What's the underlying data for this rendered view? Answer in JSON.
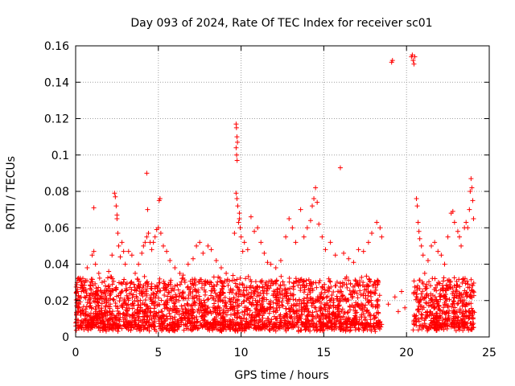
{
  "chart_data": {
    "type": "scatter",
    "title": "Day 093 of 2024, Rate Of TEC Index for receiver sc01",
    "xlabel": "GPS time / hours",
    "ylabel": "ROTI / TECUs",
    "xlim": [
      0,
      25
    ],
    "ylim": [
      0,
      0.16
    ],
    "xticks": [
      0,
      5,
      10,
      15,
      20,
      25
    ],
    "yticks": [
      0,
      0.02,
      0.04,
      0.06,
      0.08,
      0.1,
      0.12,
      0.14,
      0.16
    ],
    "xtick_labels": [
      "0",
      "5",
      "10",
      "15",
      "20",
      "25"
    ],
    "ytick_labels": [
      "0",
      "0.02",
      "0.04",
      "0.06",
      "0.08",
      "0.1",
      "0.12",
      "0.14",
      "0.16"
    ],
    "grid": true,
    "marker": "+",
    "marker_color": "#ff0000",
    "dense_band": {
      "note": "thousands of points, ROTI mostly 0.003 to 0.03 TECU/s",
      "segments": [
        [
          0,
          18.5
        ],
        [
          20.4,
          24.1
        ]
      ],
      "typical_range": [
        0.003,
        0.03
      ]
    },
    "series": [
      {
        "name": "sc01",
        "points": [
          [
            0.05,
            0.012
          ],
          [
            0.2,
            0.018
          ],
          [
            0.35,
            0.025
          ],
          [
            0.5,
            0.03
          ],
          [
            0.7,
            0.038
          ],
          [
            0.9,
            0.028
          ],
          [
            1.0,
            0.045
          ],
          [
            1.1,
            0.047
          ],
          [
            1.2,
            0.04
          ],
          [
            1.4,
            0.035
          ],
          [
            1.6,
            0.03
          ],
          [
            1.8,
            0.028
          ],
          [
            2.0,
            0.036
          ],
          [
            2.1,
            0.033
          ],
          [
            2.2,
            0.045
          ],
          [
            2.35,
            0.079
          ],
          [
            2.4,
            0.077
          ],
          [
            2.45,
            0.072
          ],
          [
            2.5,
            0.065
          ],
          [
            2.55,
            0.057
          ],
          [
            2.6,
            0.05
          ],
          [
            2.7,
            0.044
          ],
          [
            2.8,
            0.052
          ],
          [
            2.9,
            0.047
          ],
          [
            3.0,
            0.04
          ],
          [
            3.2,
            0.047
          ],
          [
            3.4,
            0.045
          ],
          [
            3.6,
            0.035
          ],
          [
            3.8,
            0.04
          ],
          [
            4.0,
            0.046
          ],
          [
            4.1,
            0.05
          ],
          [
            4.2,
            0.052
          ],
          [
            4.3,
            0.055
          ],
          [
            4.4,
            0.057
          ],
          [
            4.5,
            0.052
          ],
          [
            4.6,
            0.048
          ],
          [
            4.7,
            0.052
          ],
          [
            4.8,
            0.055
          ],
          [
            4.9,
            0.059
          ],
          [
            5.0,
            0.06
          ],
          [
            5.05,
            0.075
          ],
          [
            5.15,
            0.057
          ],
          [
            5.3,
            0.05
          ],
          [
            5.5,
            0.047
          ],
          [
            5.7,
            0.042
          ],
          [
            6.0,
            0.038
          ],
          [
            6.3,
            0.035
          ],
          [
            6.5,
            0.034
          ],
          [
            6.8,
            0.04
          ],
          [
            7.1,
            0.043
          ],
          [
            7.3,
            0.05
          ],
          [
            7.5,
            0.052
          ],
          [
            7.7,
            0.046
          ],
          [
            8.0,
            0.05
          ],
          [
            8.2,
            0.048
          ],
          [
            8.5,
            0.042
          ],
          [
            8.8,
            0.038
          ],
          [
            9.1,
            0.035
          ],
          [
            1.1,
            0.071
          ],
          [
            2.5,
            0.067
          ],
          [
            4.3,
            0.09
          ],
          [
            4.35,
            0.07
          ],
          [
            5.1,
            0.076
          ],
          [
            9.7,
            0.117
          ],
          [
            9.72,
            0.115
          ],
          [
            9.75,
            0.11
          ],
          [
            9.78,
            0.107
          ],
          [
            9.7,
            0.104
          ],
          [
            9.73,
            0.1
          ],
          [
            9.76,
            0.097
          ],
          [
            9.7,
            0.079
          ],
          [
            9.75,
            0.076
          ],
          [
            9.8,
            0.072
          ],
          [
            9.85,
            0.063
          ],
          [
            9.9,
            0.068
          ],
          [
            9.95,
            0.06
          ],
          [
            10.0,
            0.055
          ],
          [
            10.1,
            0.047
          ],
          [
            10.2,
            0.052
          ],
          [
            10.4,
            0.048
          ],
          [
            10.6,
            0.066
          ],
          [
            10.8,
            0.058
          ],
          [
            11.0,
            0.06
          ],
          [
            11.2,
            0.052
          ],
          [
            11.4,
            0.046
          ],
          [
            11.6,
            0.041
          ],
          [
            11.8,
            0.04
          ],
          [
            12.1,
            0.038
          ],
          [
            12.4,
            0.042
          ],
          [
            12.7,
            0.055
          ],
          [
            12.9,
            0.065
          ],
          [
            13.1,
            0.06
          ],
          [
            13.3,
            0.052
          ],
          [
            13.6,
            0.07
          ],
          [
            13.8,
            0.055
          ],
          [
            14.0,
            0.06
          ],
          [
            14.2,
            0.064
          ],
          [
            14.3,
            0.072
          ],
          [
            14.4,
            0.076
          ],
          [
            14.5,
            0.082
          ],
          [
            14.6,
            0.074
          ],
          [
            14.7,
            0.062
          ],
          [
            14.9,
            0.055
          ],
          [
            15.1,
            0.048
          ],
          [
            15.4,
            0.052
          ],
          [
            15.7,
            0.045
          ],
          [
            16.0,
            0.093
          ],
          [
            16.2,
            0.046
          ],
          [
            16.5,
            0.043
          ],
          [
            16.8,
            0.041
          ],
          [
            17.1,
            0.048
          ],
          [
            17.4,
            0.047
          ],
          [
            17.7,
            0.052
          ],
          [
            17.9,
            0.057
          ],
          [
            18.2,
            0.063
          ],
          [
            18.4,
            0.06
          ],
          [
            18.5,
            0.055
          ],
          [
            9.6,
            0.057
          ],
          [
            9.9,
            0.065
          ],
          [
            18.9,
            0.018
          ],
          [
            19.3,
            0.022
          ],
          [
            19.5,
            0.014
          ],
          [
            19.7,
            0.025
          ],
          [
            19.9,
            0.016
          ],
          [
            19.1,
            0.151
          ],
          [
            19.15,
            0.152
          ],
          [
            20.3,
            0.154
          ],
          [
            20.35,
            0.155
          ],
          [
            20.4,
            0.152
          ],
          [
            20.45,
            0.15
          ],
          [
            20.5,
            0.154
          ],
          [
            20.6,
            0.076
          ],
          [
            20.65,
            0.072
          ],
          [
            20.7,
            0.063
          ],
          [
            20.75,
            0.058
          ],
          [
            20.8,
            0.054
          ],
          [
            20.9,
            0.05
          ],
          [
            21.0,
            0.045
          ],
          [
            21.1,
            0.035
          ],
          [
            21.3,
            0.042
          ],
          [
            21.5,
            0.05
          ],
          [
            21.7,
            0.052
          ],
          [
            21.9,
            0.047
          ],
          [
            22.1,
            0.045
          ],
          [
            22.3,
            0.04
          ],
          [
            22.5,
            0.055
          ],
          [
            22.7,
            0.068
          ],
          [
            22.8,
            0.069
          ],
          [
            22.9,
            0.063
          ],
          [
            23.1,
            0.058
          ],
          [
            23.2,
            0.055
          ],
          [
            23.3,
            0.05
          ],
          [
            23.5,
            0.06
          ],
          [
            23.6,
            0.063
          ],
          [
            23.7,
            0.06
          ],
          [
            23.8,
            0.07
          ],
          [
            23.85,
            0.08
          ],
          [
            23.9,
            0.087
          ],
          [
            23.95,
            0.082
          ],
          [
            24.0,
            0.075
          ],
          [
            24.05,
            0.065
          ]
        ]
      }
    ]
  }
}
